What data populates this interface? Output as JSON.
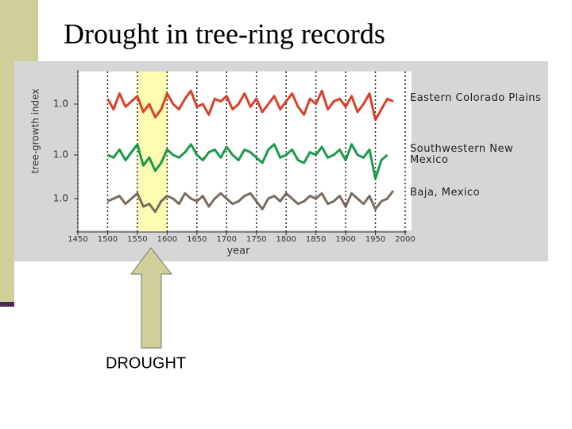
{
  "chart_data": {
    "type": "line",
    "title": "Drought in tree-ring records",
    "xlabel": "year",
    "ylabel": "tree-growth index",
    "annotation": "DROUGHT",
    "xlim": [
      1450,
      2000
    ],
    "xticks": [
      1450,
      1500,
      1550,
      1600,
      1650,
      1700,
      1750,
      1800,
      1850,
      1900,
      1950,
      2000
    ],
    "grid": true,
    "highlight": {
      "xlim": [
        1550,
        1600
      ],
      "color": "#fffbb0"
    },
    "x": [
      1500,
      1510,
      1520,
      1530,
      1540,
      1550,
      1560,
      1570,
      1580,
      1590,
      1600,
      1610,
      1620,
      1630,
      1640,
      1650,
      1660,
      1670,
      1680,
      1690,
      1700,
      1710,
      1720,
      1730,
      1740,
      1750,
      1760,
      1770,
      1780,
      1790,
      1800,
      1810,
      1820,
      1830,
      1840,
      1850,
      1860,
      1870,
      1880,
      1890,
      1900,
      1910,
      1920,
      1930,
      1940,
      1950,
      1960,
      1970,
      1980
    ],
    "panels": [
      {
        "ylim": [
          0.4,
          1.6
        ],
        "yticks": [
          {
            "value": 1,
            "label": "1.0"
          }
        ],
        "series": [
          {
            "name": "Eastern Colorado Plains",
            "color": "#d8402a",
            "values": [
              1.1,
              0.9,
              1.2,
              0.95,
              1.05,
              1.15,
              0.85,
              1.0,
              0.75,
              0.9,
              1.2,
              1.0,
              0.9,
              1.1,
              1.25,
              0.95,
              1.0,
              0.8,
              1.1,
              1.05,
              1.15,
              0.9,
              1.0,
              1.2,
              0.95,
              1.1,
              0.85,
              1.0,
              1.15,
              0.9,
              1.05,
              1.2,
              0.95,
              0.8,
              1.1,
              1.0,
              1.25,
              0.9,
              1.05,
              1.1,
              0.95,
              1.15,
              0.85,
              1.0,
              1.2,
              0.7,
              0.9,
              1.1,
              1.05
            ]
          }
        ]
      },
      {
        "ylim": [
          0.4,
          1.6
        ],
        "yticks": [
          {
            "value": 1,
            "label": "1.0"
          }
        ],
        "series": [
          {
            "name": "Southwestern New Mexico",
            "color": "#1a9a4a",
            "values": [
              1.0,
              0.95,
              1.1,
              0.9,
              1.05,
              1.2,
              0.8,
              0.95,
              0.7,
              0.85,
              1.1,
              1.0,
              0.95,
              1.05,
              1.2,
              1.0,
              0.9,
              1.05,
              1.1,
              0.95,
              1.15,
              1.0,
              0.9,
              1.1,
              1.05,
              0.95,
              0.85,
              1.1,
              1.2,
              0.95,
              1.0,
              1.1,
              0.9,
              0.85,
              1.05,
              1.0,
              1.15,
              0.95,
              1.0,
              1.1,
              0.9,
              1.2,
              1.0,
              0.95,
              1.1,
              0.55,
              0.9,
              1.0,
              null
            ]
          }
        ]
      },
      {
        "ylim": [
          0.4,
          1.6
        ],
        "yticks": [
          {
            "value": 1,
            "label": "1.0"
          }
        ],
        "series": [
          {
            "name": "Baja, Mexico",
            "color": "#7a6a60",
            "values": [
              0.95,
              1.0,
              1.05,
              0.9,
              1.0,
              1.1,
              0.85,
              0.9,
              0.75,
              0.95,
              1.05,
              1.0,
              0.9,
              1.1,
              1.0,
              0.95,
              1.05,
              0.85,
              1.0,
              1.1,
              1.0,
              0.9,
              0.95,
              1.05,
              1.1,
              0.95,
              0.8,
              1.0,
              1.05,
              0.95,
              1.1,
              1.0,
              0.9,
              0.95,
              1.05,
              1.0,
              1.1,
              0.9,
              0.95,
              1.05,
              0.85,
              1.1,
              1.0,
              0.9,
              1.05,
              0.8,
              0.95,
              1.0,
              1.15
            ]
          }
        ]
      }
    ]
  }
}
